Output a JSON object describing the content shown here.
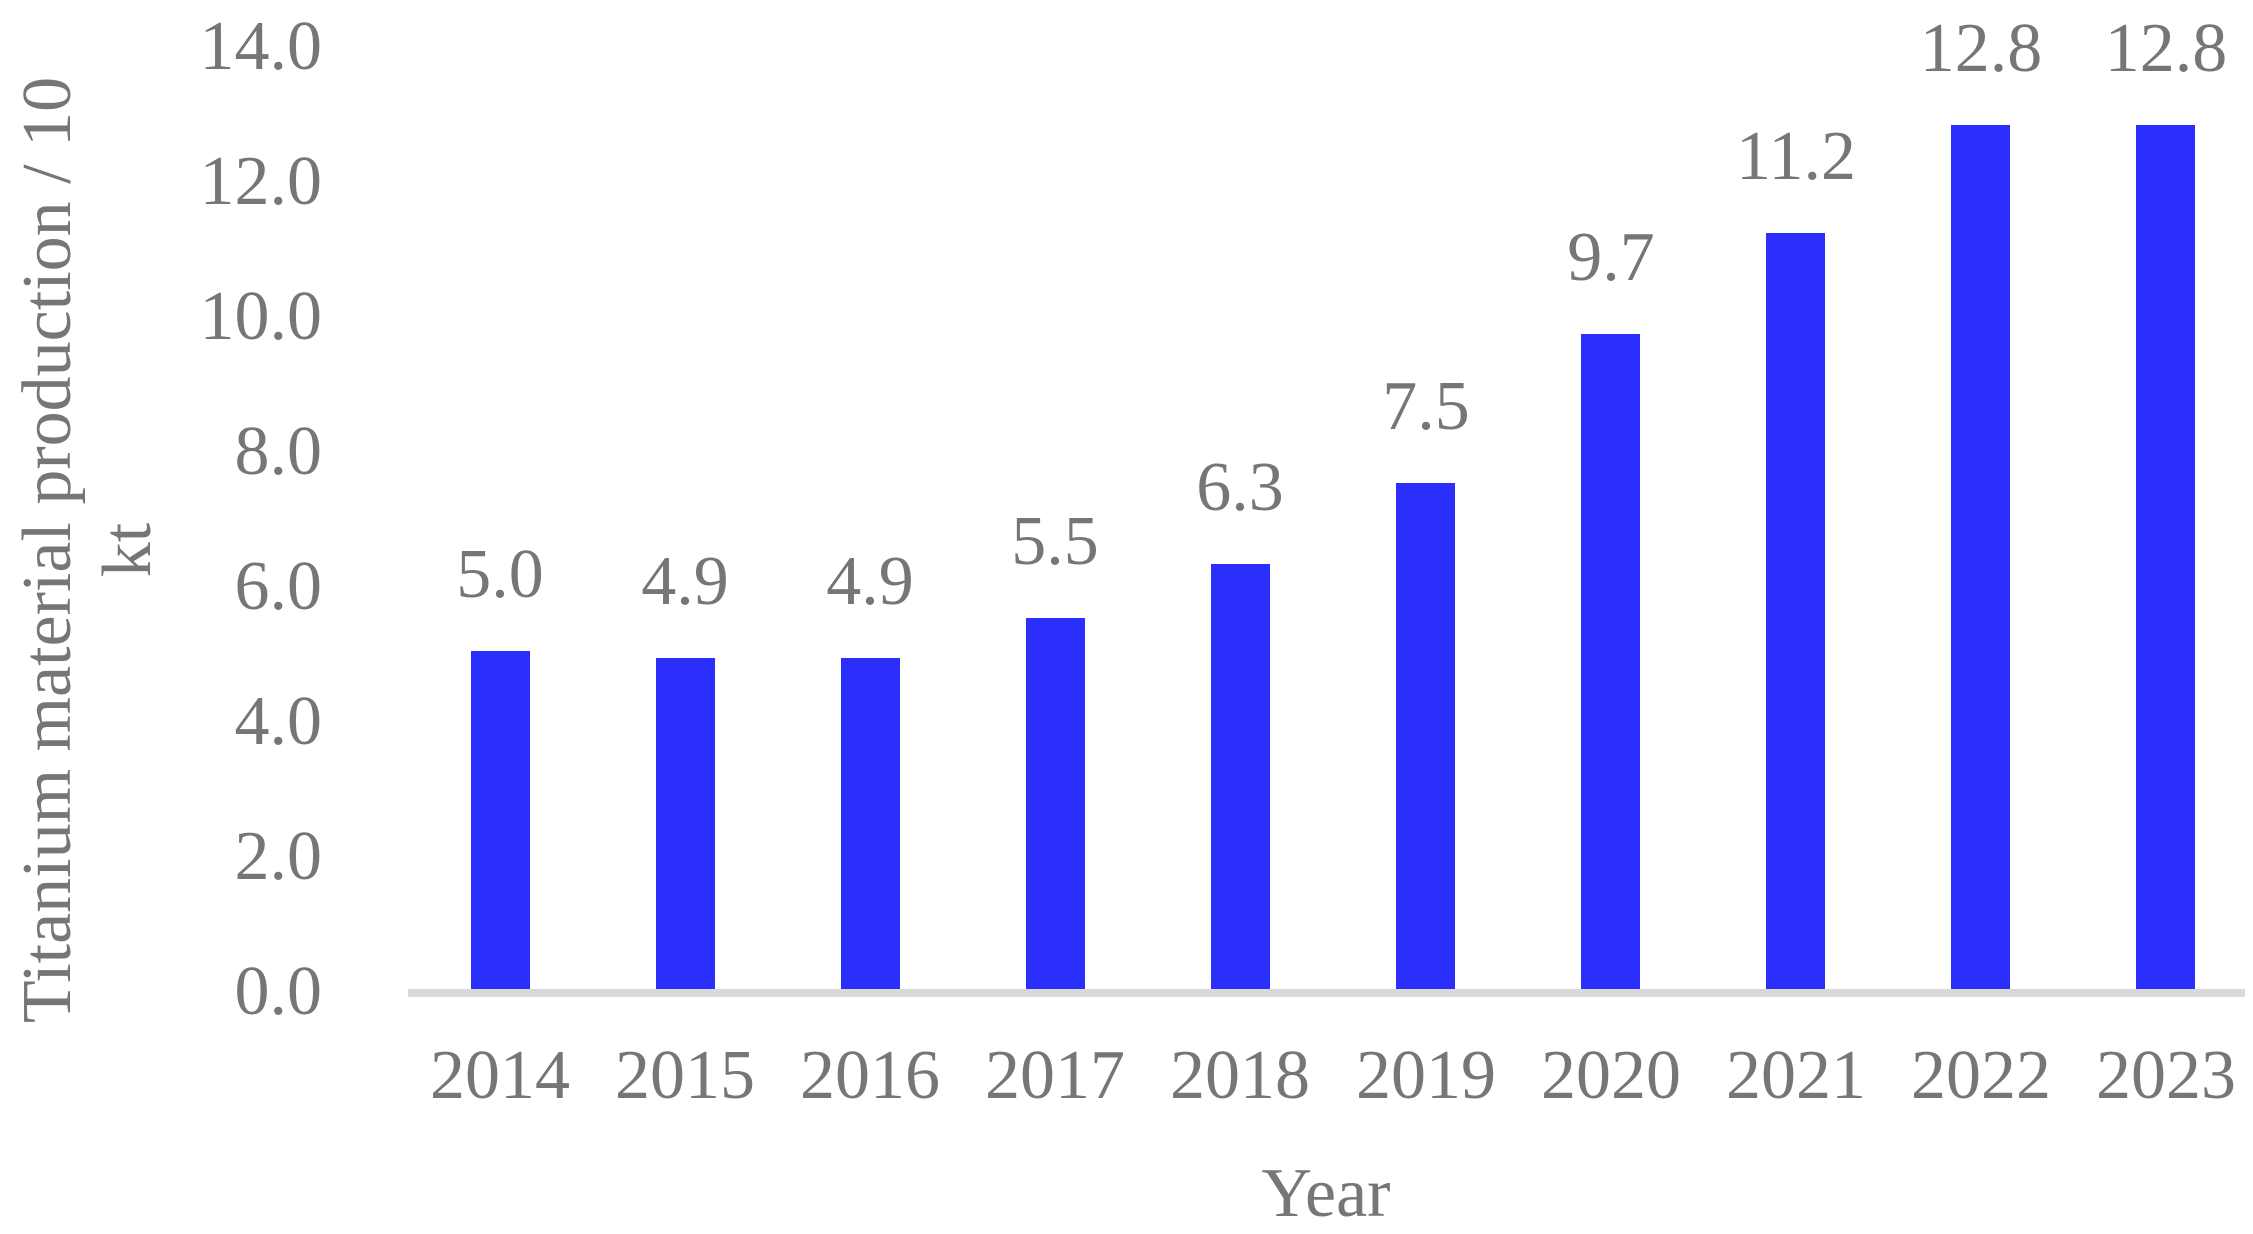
{
  "chart_data": {
    "type": "bar",
    "categories": [
      "2014",
      "2015",
      "2016",
      "2017",
      "2018",
      "2019",
      "2020",
      "2021",
      "2022",
      "2023"
    ],
    "values": [
      5.0,
      4.9,
      4.9,
      5.5,
      6.3,
      7.5,
      9.7,
      11.2,
      12.8,
      12.8
    ],
    "data_labels": [
      "5.0",
      "4.9",
      "4.9",
      "5.5",
      "6.3",
      "7.5",
      "9.7",
      "11.2",
      "12.8",
      "12.8"
    ],
    "title": "",
    "xlabel": "Year",
    "ylabel_line1": "Titanium material production / 10",
    "ylabel_line2": "kt",
    "yticks": [
      "0.0",
      "2.0",
      "4.0",
      "6.0",
      "8.0",
      "10.0",
      "12.0",
      "14.0"
    ],
    "ylim": [
      0,
      14
    ],
    "grid": false,
    "legend": "none",
    "bar_color": "#2B2FFC",
    "axis_line_color": "#D9D9D9",
    "text_color": "#767676"
  }
}
